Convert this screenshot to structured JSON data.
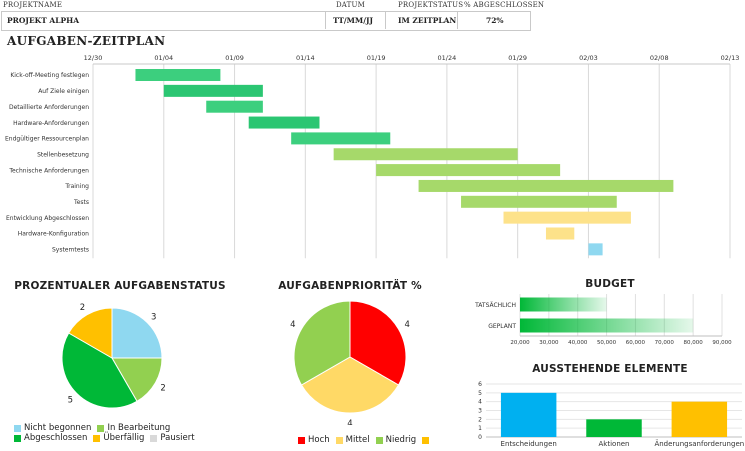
{
  "header": {
    "labels": {
      "project_name": "PROJEKTNAME",
      "date": "DATUM",
      "status": "PROJEKTSTATUS",
      "percent": "% ABGESCHLOSSEN"
    },
    "values": {
      "project_name": "PROJEKT ALPHA",
      "date": "TT/MM/JJ",
      "status": "IM ZEITPLAN",
      "percent": "72%"
    }
  },
  "gantt": {
    "title": "AUFGABEN-ZEITPLAN",
    "chart_data": {
      "type": "bar",
      "orientation": "horizontal-gantt",
      "date_ticks": [
        "12/30",
        "01/04",
        "01/09",
        "01/14",
        "01/19",
        "01/24",
        "01/29",
        "02/03",
        "02/08",
        "02/13"
      ],
      "x_range_days": [
        0,
        45
      ],
      "tasks": [
        {
          "name": "Kick-off-Meeting festlegen",
          "start": 3,
          "end": 9,
          "color": "#3ccf7e"
        },
        {
          "name": "Auf Ziele einigen",
          "start": 5,
          "end": 12,
          "color": "#2bc672"
        },
        {
          "name": "Detaillierte Anforderungen",
          "start": 8,
          "end": 12,
          "color": "#3ccf7e"
        },
        {
          "name": "Hardware-Anforderungen",
          "start": 11,
          "end": 16,
          "color": "#2bc672"
        },
        {
          "name": "Endgültiger Ressourcenplan",
          "start": 14,
          "end": 21,
          "color": "#3ccf7e"
        },
        {
          "name": "Stellenbesetzung",
          "start": 17,
          "end": 30,
          "color": "#a6d96a"
        },
        {
          "name": "Technische Anforderungen",
          "start": 20,
          "end": 33,
          "color": "#a6d96a"
        },
        {
          "name": "Training",
          "start": 23,
          "end": 41,
          "color": "#a6d96a"
        },
        {
          "name": "Tests",
          "start": 26,
          "end": 37,
          "color": "#a6d96a"
        },
        {
          "name": "Entwicklung Abgeschlossen",
          "start": 29,
          "end": 38,
          "color": "#fde28a"
        },
        {
          "name": "Hardware-Konfiguration",
          "start": 32,
          "end": 34,
          "color": "#fde28a"
        },
        {
          "name": "Systemtests",
          "start": 35,
          "end": 36,
          "color": "#8fd8f0"
        }
      ]
    }
  },
  "status_pie": {
    "title": "PROZENTUALER AUFGABENSTATUS",
    "chart_data": {
      "type": "pie",
      "slices": [
        {
          "label": "Nicht begonnen",
          "value": 3,
          "color": "#8fd8f0"
        },
        {
          "label": "In Bearbeitung",
          "value": 2,
          "color": "#92d050"
        },
        {
          "label": "Abgeschlossen",
          "value": 5,
          "color": "#00b837"
        },
        {
          "label": "Überfällig",
          "value": 2,
          "color": "#ffc000"
        },
        {
          "label": "Pausiert",
          "value": 0,
          "color": "#d9d9d9"
        }
      ]
    }
  },
  "priority_pie": {
    "title": "AUFGABENPRIORITÄT %",
    "chart_data": {
      "type": "pie",
      "slices": [
        {
          "label": "Hoch",
          "value": 4,
          "color": "#ff0000"
        },
        {
          "label": "Mittel",
          "value": 4,
          "color": "#ffd966"
        },
        {
          "label": "Niedrig",
          "value": 4,
          "color": "#92d050"
        },
        {
          "label": "",
          "value": 0,
          "color": "#ffc000"
        }
      ]
    }
  },
  "budget": {
    "title": "BUDGET",
    "chart_data": {
      "type": "bar",
      "orientation": "horizontal",
      "categories": [
        "TATSÄCHLICH",
        "GEPLANT"
      ],
      "values": [
        50000,
        80000
      ],
      "xlim": [
        20000,
        90000
      ],
      "ticks": [
        "20,000",
        "30,000",
        "40,000",
        "50,000",
        "60,000",
        "70,000",
        "80,000",
        "90,000"
      ],
      "tick_values": [
        20000,
        30000,
        40000,
        50000,
        60000,
        70000,
        80000,
        90000
      ],
      "color": "#00b837"
    }
  },
  "pending": {
    "title": "AUSSTEHENDE ELEMENTE",
    "chart_data": {
      "type": "bar",
      "categories": [
        "Entscheidungen",
        "Aktionen",
        "Änderungsanforderungen"
      ],
      "values": [
        5,
        2,
        4
      ],
      "colors": [
        "#00b0f0",
        "#00b837",
        "#ffc000"
      ],
      "ylim": [
        0,
        6
      ],
      "yticks": [
        "0",
        "1",
        "2",
        "3",
        "4",
        "5",
        "6"
      ]
    }
  }
}
